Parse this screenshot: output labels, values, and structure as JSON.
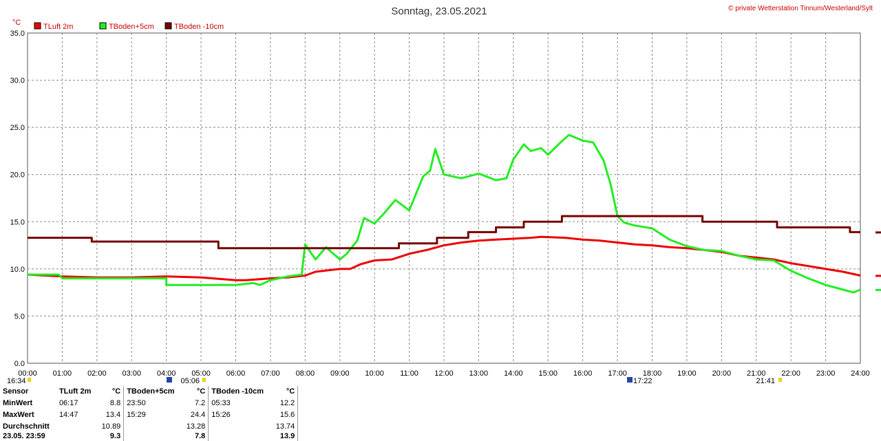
{
  "header": {
    "title": "Sonntag, 23.05.2021",
    "copyright": "© private Wetterstation Tinnum/Westerland/Sylt",
    "unit": "°C"
  },
  "chart_data": {
    "type": "line",
    "title": "Sonntag, 23.05.2021",
    "ylabel": "°C",
    "ylim": [
      0,
      35
    ],
    "xlim": [
      0,
      24
    ],
    "grid": true,
    "legend_position": "top-left",
    "y_ticks": [
      "0.0",
      "5.0",
      "10.0",
      "15.0",
      "20.0",
      "25.0",
      "30.0",
      "35.0"
    ],
    "x_ticks": [
      "00:00",
      "01:00",
      "02:00",
      "03:00",
      "04:00",
      "05:00",
      "06:00",
      "07:00",
      "08:00",
      "09:00",
      "10:00",
      "11:00",
      "12:00",
      "13:00",
      "14:00",
      "15:00",
      "16:00",
      "17:00",
      "18:00",
      "19:00",
      "20:00",
      "21:00",
      "22:00",
      "23:00",
      "24:00"
    ],
    "series": [
      {
        "name": "TLuft 2m",
        "color": "#ee0000",
        "points": [
          [
            0,
            9.4
          ],
          [
            1,
            9.2
          ],
          [
            2,
            9.1
          ],
          [
            3,
            9.1
          ],
          [
            4,
            9.2
          ],
          [
            5,
            9.1
          ],
          [
            6,
            8.8
          ],
          [
            6.3,
            8.8
          ],
          [
            7,
            9.0
          ],
          [
            7.5,
            9.1
          ],
          [
            8,
            9.3
          ],
          [
            8.3,
            9.7
          ],
          [
            9,
            10.0
          ],
          [
            9.3,
            10.0
          ],
          [
            9.6,
            10.5
          ],
          [
            10,
            10.9
          ],
          [
            10.5,
            11.0
          ],
          [
            11,
            11.6
          ],
          [
            11.5,
            12.0
          ],
          [
            12,
            12.5
          ],
          [
            12.5,
            12.8
          ],
          [
            13,
            13.0
          ],
          [
            13.5,
            13.1
          ],
          [
            14,
            13.2
          ],
          [
            14.5,
            13.3
          ],
          [
            14.8,
            13.4
          ],
          [
            15.5,
            13.3
          ],
          [
            16,
            13.1
          ],
          [
            16.5,
            13.0
          ],
          [
            17,
            12.8
          ],
          [
            17.5,
            12.6
          ],
          [
            18,
            12.5
          ],
          [
            18.5,
            12.3
          ],
          [
            19,
            12.2
          ],
          [
            19.5,
            12.0
          ],
          [
            20,
            11.8
          ],
          [
            20.5,
            11.4
          ],
          [
            21,
            11.2
          ],
          [
            21.5,
            11.0
          ],
          [
            22,
            10.6
          ],
          [
            22.5,
            10.3
          ],
          [
            23,
            10.0
          ],
          [
            23.5,
            9.7
          ],
          [
            24,
            9.3
          ]
        ]
      },
      {
        "name": "TBoden+5cm",
        "color": "#22ee22",
        "points": [
          [
            0,
            9.4
          ],
          [
            0.9,
            9.4
          ],
          [
            1,
            9.0
          ],
          [
            2,
            9.0
          ],
          [
            3,
            9.0
          ],
          [
            4,
            9.0
          ],
          [
            4,
            8.3
          ],
          [
            5,
            8.3
          ],
          [
            6,
            8.3
          ],
          [
            6.5,
            8.5
          ],
          [
            6.7,
            8.3
          ],
          [
            7,
            8.8
          ],
          [
            7.5,
            9.2
          ],
          [
            7.9,
            9.4
          ],
          [
            8,
            12.6
          ],
          [
            8.3,
            11.0
          ],
          [
            8.6,
            12.3
          ],
          [
            9,
            11.0
          ],
          [
            9.2,
            11.6
          ],
          [
            9.5,
            13.0
          ],
          [
            9.7,
            15.4
          ],
          [
            10,
            14.8
          ],
          [
            10.3,
            16.0
          ],
          [
            10.6,
            17.3
          ],
          [
            11,
            16.2
          ],
          [
            11.2,
            18.0
          ],
          [
            11.4,
            19.8
          ],
          [
            11.6,
            20.4
          ],
          [
            11.75,
            22.7
          ],
          [
            12,
            20.0
          ],
          [
            12.5,
            19.6
          ],
          [
            13,
            20.1
          ],
          [
            13.5,
            19.4
          ],
          [
            13.8,
            19.6
          ],
          [
            14,
            21.6
          ],
          [
            14.3,
            23.2
          ],
          [
            14.5,
            22.5
          ],
          [
            14.8,
            22.8
          ],
          [
            15,
            22.1
          ],
          [
            15.3,
            23.2
          ],
          [
            15.6,
            24.2
          ],
          [
            16,
            23.6
          ],
          [
            16.3,
            23.4
          ],
          [
            16.6,
            21.5
          ],
          [
            16.8,
            19.0
          ],
          [
            17,
            15.6
          ],
          [
            17.2,
            14.9
          ],
          [
            17.5,
            14.6
          ],
          [
            18,
            14.3
          ],
          [
            18.5,
            13.1
          ],
          [
            19,
            12.4
          ],
          [
            19.5,
            12.0
          ],
          [
            20,
            11.9
          ],
          [
            20.5,
            11.4
          ],
          [
            21,
            11.0
          ],
          [
            21.5,
            10.9
          ],
          [
            22,
            9.8
          ],
          [
            22.5,
            9.0
          ],
          [
            23,
            8.3
          ],
          [
            23.5,
            7.8
          ],
          [
            23.8,
            7.5
          ],
          [
            24,
            7.8
          ]
        ]
      },
      {
        "name": "TBoden -10cm",
        "color": "#770000",
        "points": [
          [
            0,
            13.3
          ],
          [
            1.85,
            13.3
          ],
          [
            1.85,
            12.9
          ],
          [
            5.5,
            12.9
          ],
          [
            5.5,
            12.2
          ],
          [
            10.7,
            12.2
          ],
          [
            10.7,
            12.7
          ],
          [
            11.8,
            12.7
          ],
          [
            11.8,
            13.3
          ],
          [
            12.7,
            13.3
          ],
          [
            12.7,
            13.9
          ],
          [
            13.5,
            13.9
          ],
          [
            13.5,
            14.4
          ],
          [
            14.3,
            14.4
          ],
          [
            14.3,
            15.0
          ],
          [
            15.4,
            15.0
          ],
          [
            15.4,
            15.6
          ],
          [
            19.45,
            15.6
          ],
          [
            19.45,
            15.0
          ],
          [
            21.6,
            15.0
          ],
          [
            21.6,
            14.4
          ],
          [
            23.7,
            14.4
          ],
          [
            23.7,
            13.9
          ],
          [
            24,
            13.9
          ]
        ]
      }
    ]
  },
  "event_markers": [
    "16:34",
    "05:06",
    "17:22",
    "21:41"
  ],
  "stats_table": {
    "headers": [
      "Sensor",
      "TLuft 2m",
      "°C",
      "TBoden+5cm",
      "°C",
      "TBoden -10cm",
      "°C"
    ],
    "rows": [
      [
        "MinWert",
        "06:17",
        "8.8",
        "23:50",
        "7.2",
        "05:33",
        "12.2"
      ],
      [
        "MaxWert",
        "14:47",
        "13.4",
        "15:29",
        "24.4",
        "15:26",
        "15.6"
      ],
      [
        "Durchschnitt",
        "",
        "10.89",
        "",
        "13.28",
        "",
        "13.74"
      ],
      [
        "23.05. 23:59",
        "",
        "9.3",
        "",
        "7.8",
        "",
        "13.9"
      ]
    ]
  }
}
